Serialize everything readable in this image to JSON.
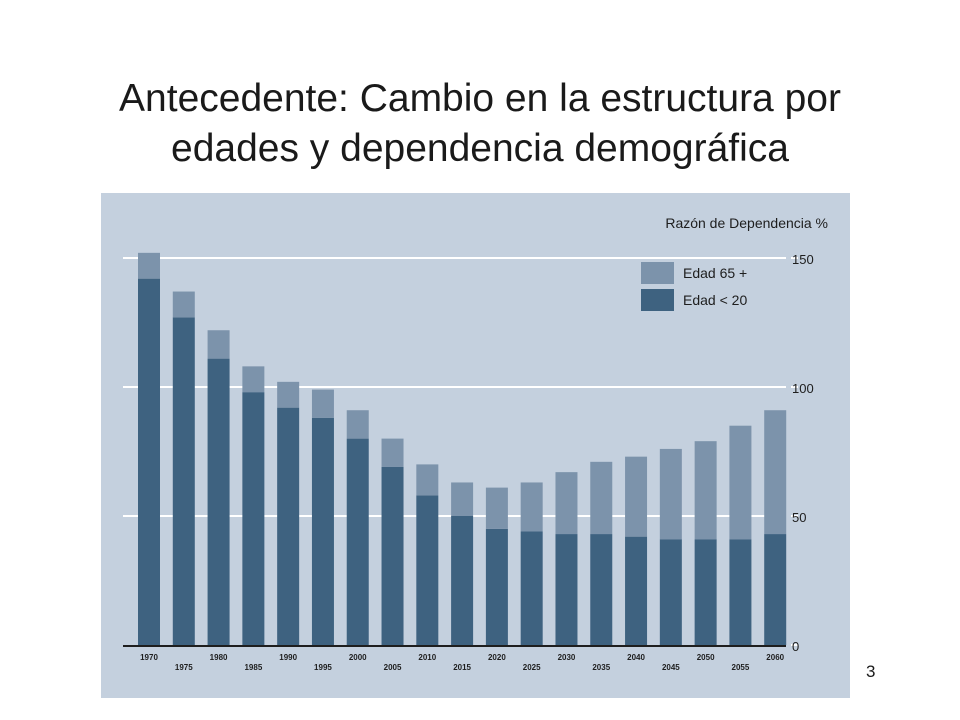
{
  "slide": {
    "title_line1": "Antecedente: Cambio en la estructura por",
    "title_line2": "edades y dependencia demográfica",
    "page_number": "3"
  },
  "chart_data": {
    "type": "bar",
    "stacked": true,
    "title": "Razón de Dependencia %",
    "ylabel": "",
    "xlabel": "",
    "ylim": [
      0,
      150
    ],
    "yticks": [
      0,
      50,
      100,
      150
    ],
    "y_axis_position": "right",
    "grid": true,
    "legend_position": "top-right",
    "categories": [
      "1970",
      "1975",
      "1980",
      "1985",
      "1990",
      "1995",
      "2000",
      "2005",
      "2010",
      "2015",
      "2020",
      "2025",
      "2030",
      "2035",
      "2040",
      "2045",
      "2050",
      "2055",
      "2060"
    ],
    "series": [
      {
        "name": "Edad < 20",
        "color": "#3e6280",
        "values": [
          142,
          127,
          111,
          98,
          92,
          88,
          80,
          69,
          58,
          50,
          45,
          44,
          43,
          43,
          42,
          41,
          41,
          41,
          43
        ]
      },
      {
        "name": "Edad 65 +",
        "color": "#7c93ab",
        "values": [
          10,
          10,
          11,
          10,
          10,
          11,
          11,
          11,
          12,
          13,
          16,
          19,
          24,
          28,
          31,
          35,
          38,
          44,
          48
        ]
      }
    ]
  }
}
